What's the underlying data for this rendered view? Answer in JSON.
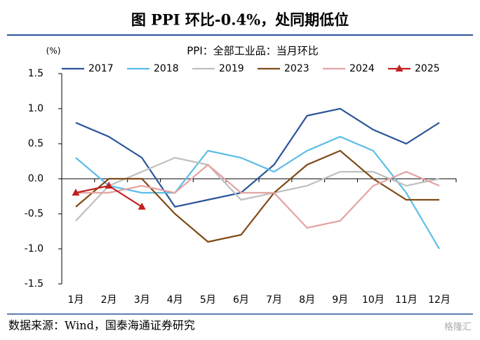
{
  "chart_data": {
    "type": "line",
    "title": "图  PPI 环比-0.4%，处同期低位",
    "subtitle": "PPI：全部工业品：当月环比",
    "ylabel": "(%)",
    "source": "数据来源：Wind，国泰海通证券研究",
    "watermark": "格隆汇",
    "categories": [
      "1月",
      "2月",
      "3月",
      "4月",
      "5月",
      "6月",
      "7月",
      "8月",
      "9月",
      "10月",
      "11月",
      "12月"
    ],
    "series": [
      {
        "name": "2017",
        "color": "#2a5599",
        "values": [
          0.8,
          0.6,
          0.3,
          -0.4,
          -0.3,
          -0.2,
          0.2,
          0.9,
          1.0,
          0.7,
          0.5,
          0.8
        ]
      },
      {
        "name": "2018",
        "color": "#5bbde8",
        "values": [
          0.3,
          -0.1,
          -0.2,
          -0.2,
          0.4,
          0.3,
          0.1,
          0.4,
          0.6,
          0.4,
          -0.2,
          -1.0
        ]
      },
      {
        "name": "2019",
        "color": "#bfbfbf",
        "values": [
          -0.6,
          -0.1,
          0.1,
          0.3,
          0.2,
          -0.3,
          -0.2,
          -0.1,
          0.1,
          0.1,
          -0.1,
          0.0
        ]
      },
      {
        "name": "2023",
        "color": "#7f4a17",
        "values": [
          -0.4,
          0.0,
          0.0,
          -0.5,
          -0.9,
          -0.8,
          -0.2,
          0.2,
          0.4,
          0.0,
          -0.3,
          -0.3
        ]
      },
      {
        "name": "2024",
        "color": "#e4a3a3",
        "values": [
          -0.2,
          -0.2,
          -0.1,
          -0.2,
          0.2,
          -0.2,
          -0.2,
          -0.7,
          -0.6,
          -0.1,
          0.1,
          -0.1
        ]
      },
      {
        "name": "2025",
        "color": "#c0201f",
        "marker": "triangle",
        "values": [
          -0.2,
          -0.1,
          -0.4,
          null,
          null,
          null,
          null,
          null,
          null,
          null,
          null,
          null
        ]
      }
    ],
    "ylim": [
      -1.5,
      1.5
    ],
    "yticks": [
      1.5,
      {
        "value": 1.0,
        "label": "1.0"
      },
      0.5,
      {
        "value": 0.0,
        "label": "0.0"
      },
      -0.5,
      {
        "value": -1.0,
        "label": "-1.0"
      },
      -1.5
    ],
    "legend": "top"
  }
}
